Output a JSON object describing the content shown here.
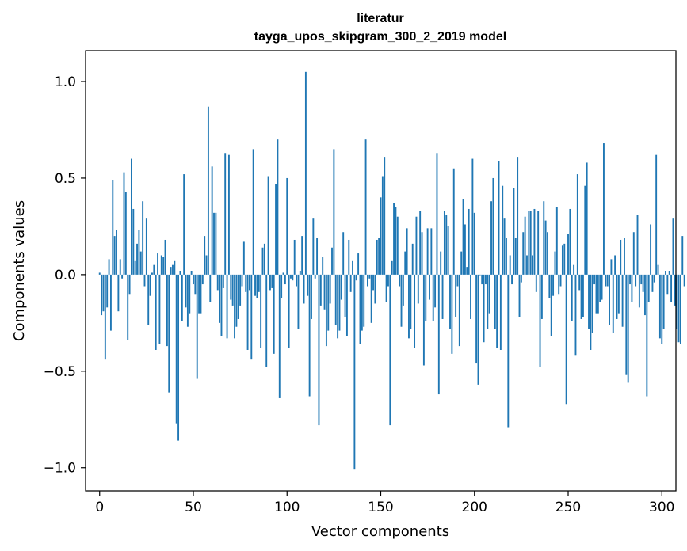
{
  "chart_data": {
    "type": "bar",
    "title": "literatur",
    "subtitle": "tayga_upos_skipgram_300_2_2019 model",
    "xlabel": "Vector components",
    "ylabel": "Components values",
    "xlim": [
      -7.5,
      307.5
    ],
    "ylim": [
      -1.12,
      1.16
    ],
    "x_ticks": [
      0,
      50,
      100,
      150,
      200,
      250,
      300
    ],
    "x_tick_labels": [
      "0",
      "50",
      "100",
      "150",
      "200",
      "250",
      "300"
    ],
    "y_ticks": [
      -1.0,
      -0.5,
      0.0,
      0.5,
      1.0
    ],
    "y_tick_labels": [
      "−1.0",
      "−0.5",
      "0.0",
      "0.5",
      "1.0"
    ],
    "bar_color": "#1f77b4",
    "values": [
      0.01,
      -0.21,
      -0.19,
      -0.44,
      -0.17,
      0.08,
      -0.29,
      0.49,
      0.2,
      0.23,
      -0.19,
      0.08,
      -0.02,
      0.53,
      0.43,
      -0.34,
      -0.1,
      0.6,
      0.34,
      0.07,
      0.16,
      0.23,
      0.12,
      0.38,
      -0.06,
      0.29,
      -0.26,
      -0.11,
      0.01,
      0.05,
      -0.39,
      0.11,
      -0.36,
      0.1,
      0.09,
      0.18,
      -0.37,
      -0.61,
      0.04,
      0.05,
      0.07,
      -0.77,
      -0.86,
      0.02,
      -0.24,
      0.52,
      -0.17,
      -0.27,
      -0.2,
      0.02,
      -0.05,
      -0.1,
      -0.54,
      -0.2,
      -0.2,
      -0.05,
      0.2,
      0.1,
      0.87,
      -0.14,
      0.56,
      0.32,
      0.32,
      -0.08,
      -0.25,
      -0.32,
      -0.07,
      0.63,
      -0.33,
      0.62,
      -0.13,
      -0.16,
      -0.33,
      -0.27,
      -0.23,
      -0.16,
      -0.06,
      0.17,
      -0.09,
      -0.39,
      -0.08,
      -0.44,
      0.65,
      -0.11,
      -0.12,
      -0.09,
      -0.38,
      0.14,
      0.16,
      -0.48,
      0.51,
      -0.08,
      -0.07,
      -0.41,
      0.47,
      0.7,
      -0.64,
      -0.12,
      0.01,
      -0.05,
      0.5,
      -0.38,
      -0.02,
      -0.03,
      0.18,
      -0.06,
      -0.28,
      0.02,
      0.2,
      -0.15,
      1.05,
      -0.11,
      -0.63,
      -0.23,
      0.29,
      -0.02,
      0.19,
      -0.78,
      -0.16,
      0.09,
      -0.18,
      -0.37,
      -0.29,
      -0.15,
      0.14,
      0.65,
      -0.26,
      -0.33,
      -0.29,
      -0.13,
      0.22,
      -0.22,
      -0.32,
      0.18,
      -0.09,
      0.07,
      -1.01,
      -0.03,
      0.11,
      -0.36,
      -0.29,
      -0.27,
      0.7,
      -0.06,
      -0.02,
      -0.25,
      -0.08,
      -0.15,
      0.18,
      0.19,
      0.4,
      0.51,
      0.61,
      -0.14,
      -0.06,
      -0.78,
      0.07,
      0.37,
      0.35,
      0.3,
      -0.06,
      -0.27,
      -0.16,
      0.12,
      0.24,
      -0.33,
      -0.28,
      0.16,
      -0.38,
      0.3,
      -0.15,
      0.33,
      0.22,
      -0.47,
      -0.24,
      0.24,
      -0.13,
      0.24,
      -0.24,
      -0.17,
      0.63,
      -0.62,
      0.12,
      -0.23,
      0.33,
      0.31,
      0.25,
      -0.28,
      -0.41,
      0.55,
      -0.22,
      -0.06,
      -0.37,
      0.12,
      0.39,
      0.26,
      0.04,
      0.34,
      -0.23,
      0.6,
      0.32,
      -0.46,
      -0.57,
      0.0,
      -0.05,
      -0.35,
      -0.05,
      -0.28,
      -0.2,
      0.38,
      0.5,
      -0.28,
      -0.38,
      0.59,
      -0.39,
      0.46,
      0.29,
      0.19,
      -0.79,
      0.1,
      -0.05,
      0.45,
      0.19,
      0.61,
      -0.22,
      -0.04,
      0.22,
      0.3,
      0.1,
      0.33,
      0.33,
      0.1,
      0.34,
      -0.09,
      0.33,
      -0.48,
      -0.23,
      0.38,
      0.28,
      0.22,
      -0.12,
      -0.32,
      -0.11,
      0.12,
      0.35,
      -0.1,
      -0.06,
      0.15,
      0.16,
      -0.67,
      0.21,
      0.34,
      -0.24,
      0.05,
      -0.42,
      0.52,
      -0.08,
      -0.23,
      -0.22,
      0.46,
      0.58,
      -0.28,
      -0.39,
      -0.3,
      -0.05,
      -0.2,
      -0.2,
      -0.14,
      -0.13,
      0.68,
      -0.06,
      -0.06,
      -0.26,
      0.08,
      -0.3,
      0.1,
      -0.23,
      -0.2,
      0.18,
      -0.27,
      0.19,
      -0.52,
      -0.56,
      -0.05,
      -0.14,
      0.22,
      -0.06,
      0.31,
      -0.17,
      -0.05,
      -0.09,
      -0.21,
      -0.63,
      -0.14,
      0.26,
      -0.09,
      -0.04,
      0.62,
      0.05,
      -0.33,
      -0.36,
      -0.28,
      0.02,
      -0.1,
      0.02,
      -0.14,
      0.29,
      -0.16,
      -0.28,
      -0.35,
      -0.36,
      0.2,
      -0.06
    ]
  }
}
